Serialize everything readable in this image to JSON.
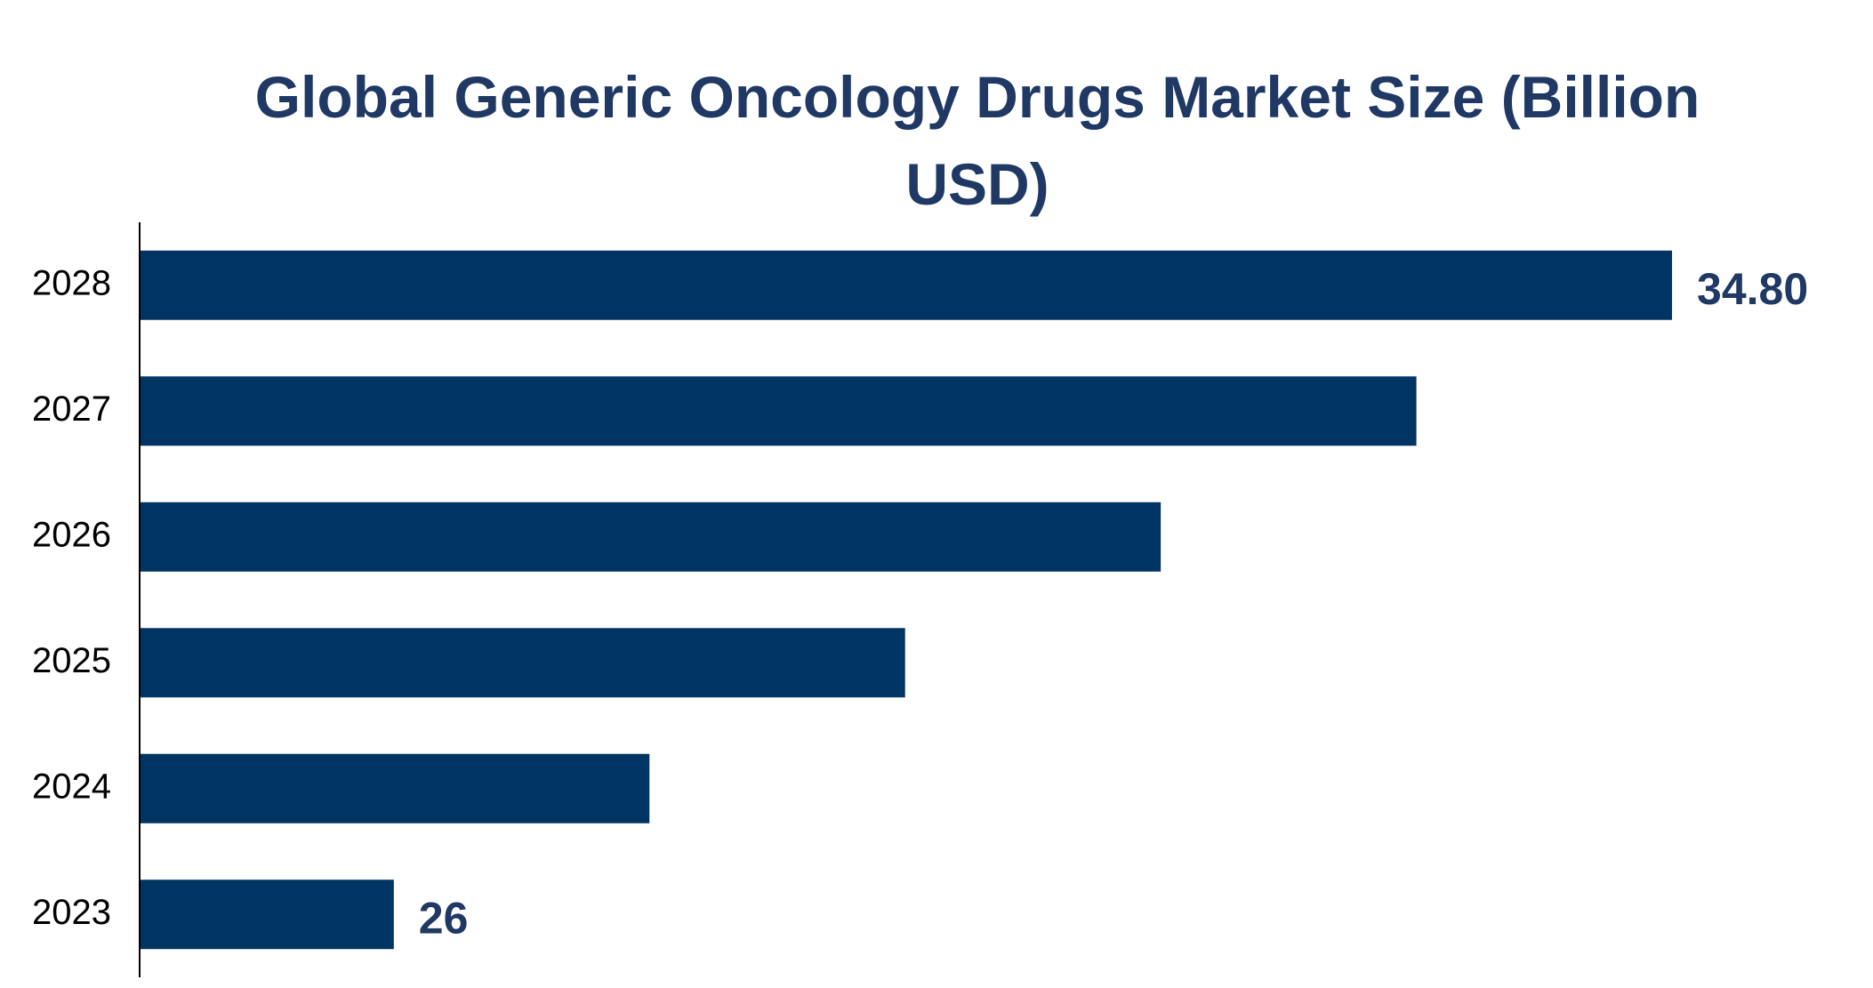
{
  "chart_data": {
    "type": "hbar",
    "title": "Global Generic Oncology Drugs Market Size (Billion USD)",
    "categories": [
      "2023",
      "2024",
      "2025",
      "2026",
      "2027",
      "2028"
    ],
    "values": [
      26,
      27.76,
      29.52,
      31.28,
      33.04,
      34.8
    ],
    "value_labels": [
      "26",
      null,
      null,
      null,
      null,
      "34.80"
    ],
    "color": "#003462",
    "xlim": [
      24.25,
      36
    ]
  }
}
